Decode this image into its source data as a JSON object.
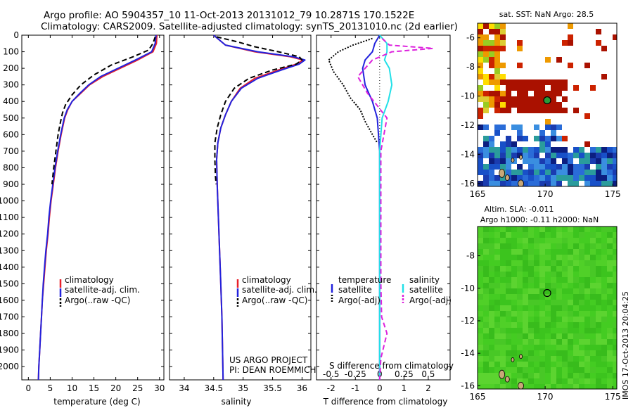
{
  "title": {
    "line1": "Argo profile: AO 5904357_10 11-Oct-2013 20131012_79 10.2871S 170.1522E",
    "line2": "Climatology: CARS2009. Satellite-adjusted climatology: synTS_20131010.nc (2d earlier)"
  },
  "colors": {
    "climatology": "#e8202a",
    "satellite_adj": "#2222dd",
    "argo": "#000000",
    "satellite_s": "#22e0e8",
    "argo_s": "#dd22dd",
    "map_land": "#c8a878",
    "sla_field": "#44cc22"
  },
  "chart_data": [
    {
      "type": "line",
      "id": "temperature",
      "xlabel": "temperature (deg C)",
      "ylabel": "",
      "xlim": [
        -1.5,
        31
      ],
      "ylim": [
        2080,
        0
      ],
      "xticks": [
        0,
        5,
        10,
        15,
        20,
        25,
        30
      ],
      "yticks": [
        0,
        100,
        200,
        300,
        400,
        500,
        600,
        700,
        800,
        900,
        1000,
        1100,
        1200,
        1300,
        1400,
        1500,
        1600,
        1700,
        1800,
        1900,
        2000
      ],
      "legend": [
        "climatology",
        "satellite-adj. clim.",
        "Argo(..raw -QC)"
      ],
      "series": [
        {
          "name": "climatology",
          "style": "solid",
          "color": "#e8202a",
          "points": [
            [
              29.4,
              0
            ],
            [
              29.3,
              50
            ],
            [
              28.5,
              100
            ],
            [
              25,
              150
            ],
            [
              21,
              200
            ],
            [
              17,
              250
            ],
            [
              14,
              300
            ],
            [
              12,
              350
            ],
            [
              10,
              400
            ],
            [
              9,
              450
            ],
            [
              8.3,
              500
            ],
            [
              7.5,
              600
            ],
            [
              6.8,
              700
            ],
            [
              6.2,
              800
            ],
            [
              5.7,
              900
            ],
            [
              5.2,
              1000
            ],
            [
              4.8,
              1100
            ],
            [
              4.5,
              1200
            ],
            [
              4.1,
              1300
            ],
            [
              3.8,
              1400
            ],
            [
              3.5,
              1500
            ],
            [
              3.2,
              1600
            ],
            [
              3,
              1700
            ],
            [
              2.8,
              1800
            ],
            [
              2.6,
              1900
            ],
            [
              2.4,
              2000
            ],
            [
              2.3,
              2080
            ]
          ]
        },
        {
          "name": "satellite-adj. clim.",
          "style": "solid",
          "color": "#2222dd",
          "points": [
            [
              29.2,
              0
            ],
            [
              29,
              50
            ],
            [
              28.2,
              100
            ],
            [
              24.5,
              150
            ],
            [
              20.5,
              200
            ],
            [
              16.5,
              250
            ],
            [
              13.8,
              300
            ],
            [
              11.8,
              350
            ],
            [
              10,
              400
            ],
            [
              8.9,
              450
            ],
            [
              8.2,
              500
            ],
            [
              7.4,
              600
            ],
            [
              6.7,
              700
            ],
            [
              6.1,
              800
            ],
            [
              5.6,
              900
            ],
            [
              5.1,
              1000
            ],
            [
              4.7,
              1100
            ],
            [
              4.4,
              1200
            ],
            [
              4,
              1300
            ],
            [
              3.7,
              1400
            ],
            [
              3.4,
              1500
            ],
            [
              3.2,
              1600
            ],
            [
              3,
              1700
            ],
            [
              2.8,
              1800
            ],
            [
              2.6,
              1900
            ],
            [
              2.4,
              2000
            ],
            [
              2.3,
              2080
            ]
          ]
        },
        {
          "name": "Argo(..raw -QC)",
          "style": "dashed",
          "color": "#000000",
          "points": [
            [
              29,
              10
            ],
            [
              28.5,
              50
            ],
            [
              27.5,
              90
            ],
            [
              24,
              130
            ],
            [
              19,
              180
            ],
            [
              15,
              240
            ],
            [
              12,
              300
            ],
            [
              10,
              360
            ],
            [
              8.5,
              420
            ],
            [
              7.8,
              470
            ],
            [
              7.3,
              530
            ],
            [
              6.8,
              600
            ],
            [
              6.3,
              700
            ],
            [
              5.8,
              800
            ],
            [
              5.4,
              900
            ]
          ]
        }
      ]
    },
    {
      "type": "line",
      "id": "salinity",
      "xlabel": "salinity",
      "xlim": [
        33.75,
        36.15
      ],
      "ylim": [
        2080,
        0
      ],
      "xticks": [
        34,
        34.5,
        35,
        35.5,
        36
      ],
      "legend": [
        "climatology",
        "satellite-adj. clim.",
        "Argo(..raw -QC)"
      ],
      "series": [
        {
          "name": "climatology",
          "style": "solid",
          "color": "#e8202a",
          "points": [
            [
              34.5,
              0
            ],
            [
              34.7,
              60
            ],
            [
              35.2,
              100
            ],
            [
              35.8,
              130
            ],
            [
              36.02,
              150
            ],
            [
              35.9,
              175
            ],
            [
              35.6,
              210
            ],
            [
              35.2,
              260
            ],
            [
              34.95,
              320
            ],
            [
              34.8,
              400
            ],
            [
              34.7,
              480
            ],
            [
              34.62,
              560
            ],
            [
              34.57,
              650
            ],
            [
              34.55,
              750
            ],
            [
              34.56,
              900
            ],
            [
              34.58,
              1100
            ],
            [
              34.6,
              1300
            ],
            [
              34.62,
              1500
            ],
            [
              34.64,
              1700
            ],
            [
              34.65,
              1900
            ],
            [
              34.66,
              2080
            ]
          ]
        },
        {
          "name": "satellite-adj. clim.",
          "style": "solid",
          "color": "#2222dd",
          "points": [
            [
              34.5,
              0
            ],
            [
              34.7,
              60
            ],
            [
              35.25,
              100
            ],
            [
              35.85,
              130
            ],
            [
              36.05,
              150
            ],
            [
              35.95,
              175
            ],
            [
              35.65,
              210
            ],
            [
              35.25,
              260
            ],
            [
              34.97,
              320
            ],
            [
              34.8,
              400
            ],
            [
              34.7,
              480
            ],
            [
              34.62,
              560
            ],
            [
              34.57,
              650
            ],
            [
              34.55,
              750
            ],
            [
              34.56,
              900
            ],
            [
              34.58,
              1100
            ],
            [
              34.6,
              1300
            ],
            [
              34.62,
              1500
            ],
            [
              34.64,
              1700
            ],
            [
              34.65,
              1900
            ],
            [
              34.66,
              2080
            ]
          ]
        },
        {
          "name": "Argo(..raw -QC)",
          "style": "dashed",
          "color": "#000000",
          "points": [
            [
              34.55,
              10
            ],
            [
              34.9,
              40
            ],
            [
              35.2,
              70
            ],
            [
              35.6,
              100
            ],
            [
              35.95,
              130
            ],
            [
              36.0,
              150
            ],
            [
              35.9,
              175
            ],
            [
              35.5,
              210
            ],
            [
              35.1,
              260
            ],
            [
              34.85,
              320
            ],
            [
              34.7,
              400
            ],
            [
              34.62,
              480
            ],
            [
              34.56,
              560
            ],
            [
              34.52,
              650
            ],
            [
              34.52,
              750
            ],
            [
              34.53,
              850
            ],
            [
              34.54,
              900
            ]
          ]
        }
      ]
    },
    {
      "type": "line",
      "id": "difference",
      "xlabel_top": "S difference from climatology",
      "xlabel": "T difference from climatology",
      "xlim": [
        -2.6,
        2.9
      ],
      "ylim": [
        2080,
        0
      ],
      "t_ticks": [
        -2,
        -1,
        0,
        1,
        2
      ],
      "s_ticks_labels": [
        "-0.5",
        "-0.25",
        "0",
        "0.25",
        "0.5"
      ],
      "s_ticks_at_t": [
        -2,
        -1,
        0,
        1,
        2
      ],
      "legend_temperature_title": "temperature",
      "legend_salinity_title": "salinity",
      "legend": [
        "satellite",
        "Argo(-adj)",
        "satellite",
        "Argo(-adj)"
      ],
      "series": [
        {
          "name": "temperature satellite",
          "style": "solid",
          "color": "#2222dd",
          "points": [
            [
              0,
              0
            ],
            [
              -0.2,
              50
            ],
            [
              -0.3,
              100
            ],
            [
              -0.6,
              150
            ],
            [
              -0.7,
              200
            ],
            [
              -0.6,
              300
            ],
            [
              -0.3,
              400
            ],
            [
              -0.1,
              500
            ],
            [
              0,
              700
            ],
            [
              0,
              1000
            ],
            [
              0,
              1500
            ],
            [
              0,
              2080
            ]
          ]
        },
        {
          "name": "temperature Argo(-adj)",
          "style": "dotted",
          "color": "#000000",
          "points": [
            [
              -0.3,
              20
            ],
            [
              -1.1,
              60
            ],
            [
              -1.7,
              100
            ],
            [
              -2.1,
              150
            ],
            [
              -1.9,
              220
            ],
            [
              -1.5,
              300
            ],
            [
              -1.2,
              380
            ],
            [
              -0.8,
              450
            ],
            [
              -0.6,
              520
            ],
            [
              -0.3,
              600
            ],
            [
              -0.1,
              650
            ]
          ]
        },
        {
          "name": "salinity satellite",
          "style": "solid",
          "color": "#22e0e8",
          "points": [
            [
              0,
              0
            ],
            [
              0.3,
              50
            ],
            [
              0.3,
              100
            ],
            [
              0.2,
              150
            ],
            [
              0.4,
              200
            ],
            [
              0.5,
              300
            ],
            [
              0.35,
              400
            ],
            [
              0.1,
              500
            ],
            [
              0,
              700
            ],
            [
              0,
              1000
            ],
            [
              0,
              1500
            ],
            [
              0,
              2080
            ]
          ]
        },
        {
          "name": "salinity Argo(-adj)",
          "style": "dashed",
          "color": "#dd22dd",
          "points": [
            [
              0.1,
              20
            ],
            [
              0.4,
              60
            ],
            [
              2.2,
              80
            ],
            [
              0.5,
              100
            ],
            [
              -0.3,
              150
            ],
            [
              -0.9,
              250
            ],
            [
              -0.5,
              350
            ],
            [
              0.3,
              500
            ],
            [
              0.05,
              700
            ],
            [
              0.05,
              1000
            ],
            [
              0.05,
              1500
            ],
            [
              0.08,
              1700
            ],
            [
              0.3,
              1800
            ],
            [
              0.05,
              1950
            ],
            [
              0,
              2080
            ]
          ]
        }
      ]
    },
    {
      "type": "heatmap",
      "id": "sst-map",
      "title": "sat. SST: NaN Argo: 28.5",
      "xlim": [
        165,
        175.3
      ],
      "ylim": [
        -16.2,
        -5
      ],
      "xticks": [
        165,
        170,
        175
      ],
      "yticks": [
        -6,
        -8,
        -10,
        -12,
        -14,
        -16
      ],
      "argo_position": [
        170.15,
        -10.29
      ]
    },
    {
      "type": "heatmap",
      "id": "sla-map",
      "title_line1": "Altim. SLA: -0.011",
      "title_line2": "Argo h1000: -0.11 h2000: NaN",
      "xlim": [
        165,
        175.3
      ],
      "ylim": [
        -16.2,
        -6.2
      ],
      "xticks": [
        165,
        170,
        175
      ],
      "yticks": [
        -8,
        -10,
        -12,
        -14,
        -16
      ],
      "argo_position": [
        170.15,
        -10.29
      ]
    }
  ],
  "footer": {
    "project": "US ARGO PROJECT",
    "pi": "PI: DEAN ROEMMICH",
    "timestamp": "IMOS 17-Oct-2013 20:04:25"
  }
}
